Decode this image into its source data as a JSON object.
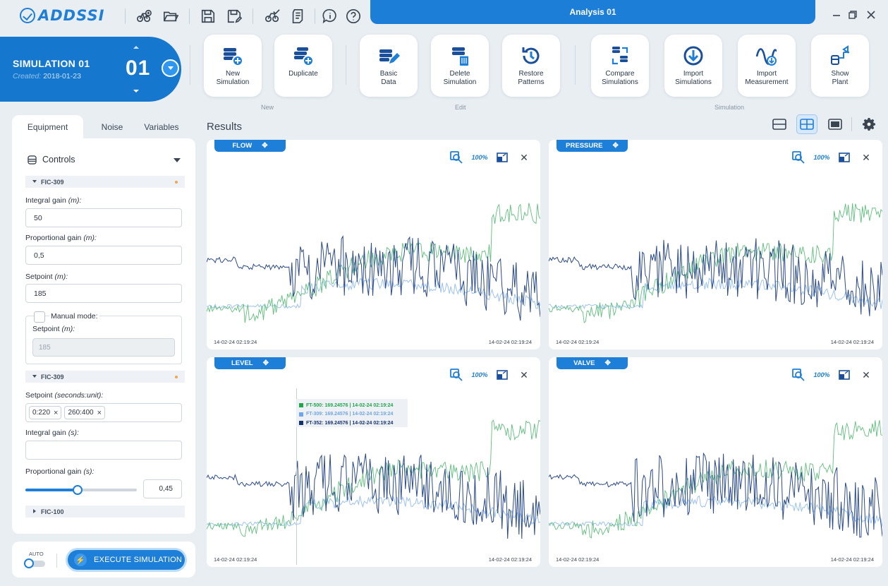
{
  "app": {
    "logo_text": "ADDSSI",
    "window_title": "Analysis 01"
  },
  "toolbar_icons": [
    "new-project-icon",
    "open-folder-icon",
    "save-icon",
    "save-as-icon",
    "validate-icon",
    "report-icon",
    "info-icon",
    "help-icon"
  ],
  "simulation": {
    "name": "SIMULATION 01",
    "created_label": "Created:",
    "created_date": "2018-01-23",
    "number": "01"
  },
  "ribbon": {
    "buttons": [
      {
        "label": "New\nSimulation",
        "icon": "new-simulation-icon"
      },
      {
        "label": "Duplicate",
        "icon": "duplicate-icon"
      },
      {
        "label": "Basic\nData",
        "icon": "basic-data-icon"
      },
      {
        "label": "Delete\nSimulation",
        "icon": "delete-simulation-icon"
      },
      {
        "label": "Restore\nPatterns",
        "icon": "restore-icon"
      },
      {
        "label": "Compare\nSimulations",
        "icon": "compare-icon"
      },
      {
        "label": "Import\nSimulations",
        "icon": "import-icon"
      },
      {
        "label": "Import\nMeasurement",
        "icon": "import-measurement-icon"
      },
      {
        "label": "Show\nPlant",
        "icon": "plant-icon"
      }
    ],
    "groups": {
      "new": "New",
      "edit": "Edit",
      "simulation": "Simulation"
    }
  },
  "tabs": [
    "Equipment",
    "Noise",
    "Variables"
  ],
  "controls": {
    "title": "Controls",
    "section1": "FIC-309",
    "integral_gain_label": "Integral gain",
    "integral_gain_unit": "(m):",
    "integral_gain_value": "50",
    "prop_gain_label": "Proportional gain",
    "prop_gain_unit": "(m):",
    "prop_gain_value": "0,5",
    "setpoint_label": "Setpoint",
    "setpoint_unit": "(m):",
    "setpoint_value": "185",
    "manual_mode_label": "Manual mode:",
    "manual_setpoint_label": "Setpoint",
    "manual_setpoint_unit": "(m):",
    "manual_setpoint_value": "185",
    "section2": "FIC-309",
    "setpoint2_label": "Setpoint",
    "setpoint2_unit": "(seconds:unit):",
    "chips": [
      "0:220",
      "260:400"
    ],
    "integral2_label": "Integral gain",
    "integral2_unit": "(s):",
    "integral2_value": "",
    "prop2_label": "Proportional gain",
    "prop2_unit": "(s):",
    "prop2_value": "0,45",
    "prop2_slider_fraction": 0.47,
    "section3": "FIC-100"
  },
  "execute": {
    "auto_label": "AUTO",
    "button_label": "EXECUTE SIMULATION"
  },
  "results": {
    "title": "Results",
    "zoom_label": "100%",
    "charts": [
      {
        "title": "FLOW",
        "ts_start": "14-02-24 02:19:24",
        "ts_end": "14-02-24 02:19:24"
      },
      {
        "title": "PRESSURE",
        "ts_start": "14-02-24 02:19:24",
        "ts_end": "14-02-24 02:19:24"
      },
      {
        "title": "LEVEL",
        "ts_start": "14-02-24 02:19:24",
        "ts_end": "14-02-24 02:19:24"
      },
      {
        "title": "VALVE",
        "ts_start": "14-02-24 02:19:24",
        "ts_end": "14-02-24 02:19:24"
      }
    ],
    "tooltip": [
      {
        "text": "FT-500: 169.24576  |  14-02-24 02:19:24",
        "color": "#1fa84a"
      },
      {
        "text": "FT-309: 169.24576  |  14-02-24 02:19:24",
        "color": "#6fa6e8"
      },
      {
        "text": "FT-352: 169.24576  |  14-02-24 02:19:24",
        "color": "#16326e"
      }
    ]
  },
  "colors": {
    "accent": "#1e7fd8",
    "series_green": "#5fbf7c",
    "series_light": "#9cc2f0",
    "series_dark": "#2a4a8c"
  }
}
